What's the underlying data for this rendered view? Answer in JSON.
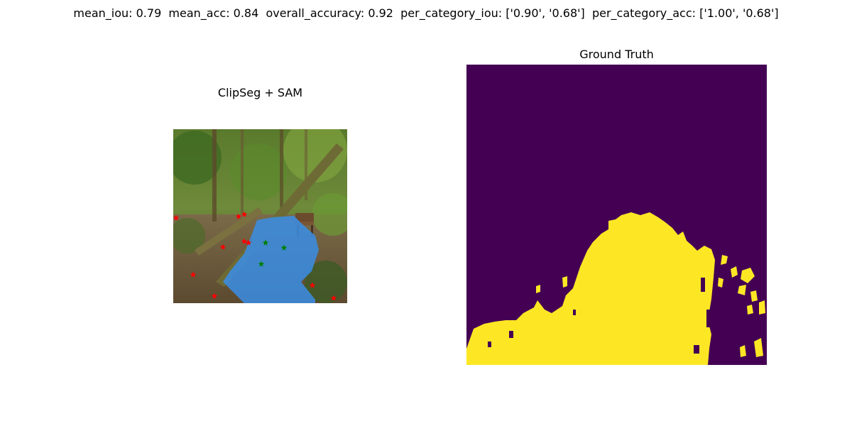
{
  "figure": {
    "suptitle": "mean_iou: 0.79  mean_acc: 0.84  overall_accuracy: 0.92  per_category_iou: ['0.90', '0.68']  per_category_acc: ['1.00', '0.68']"
  },
  "panels": {
    "left": {
      "title": "ClipSeg + SAM"
    },
    "right": {
      "title": "Ground Truth"
    }
  },
  "colors": {
    "mask_overlay": "#3a8ee6",
    "gt_background": "#440154",
    "gt_foreground": "#fde725",
    "negative_point": "#ff0000",
    "positive_point": "#008000"
  }
}
